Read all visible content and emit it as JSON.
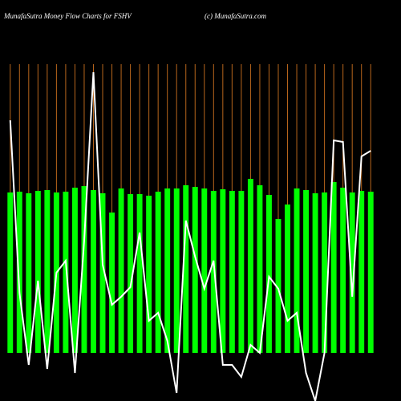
{
  "chart_data": {
    "type": "bar",
    "title": "MunafaSutra  Money Flow  Charts for FSHV",
    "subtitle": "(c) MunafaSutra.com",
    "ylim": [
      -60,
      360
    ],
    "background": "#000000",
    "grid_color": "#b8661c",
    "series": [
      {
        "type": "bar",
        "color": "#00ff00",
        "values": [
          200,
          201,
          199,
          202,
          203,
          200,
          201,
          206,
          208,
          203,
          199,
          175,
          205,
          198,
          198,
          196,
          201,
          205,
          205,
          209,
          207,
          205,
          202,
          204,
          202,
          202,
          217,
          209,
          197,
          167,
          185,
          205,
          203,
          199,
          200,
          213,
          206,
          200,
          202,
          201
        ]
      },
      {
        "type": "line",
        "color": "#ffffff",
        "values": [
          290,
          75,
          -15,
          90,
          -20,
          100,
          115,
          -25,
          140,
          350,
          110,
          60,
          70,
          82,
          150,
          40,
          50,
          15,
          -50,
          165,
          120,
          80,
          115,
          -15,
          -15,
          -30,
          10,
          0,
          95,
          80,
          40,
          50,
          -25,
          -60,
          0,
          265,
          263,
          70,
          245,
          252
        ]
      }
    ]
  }
}
